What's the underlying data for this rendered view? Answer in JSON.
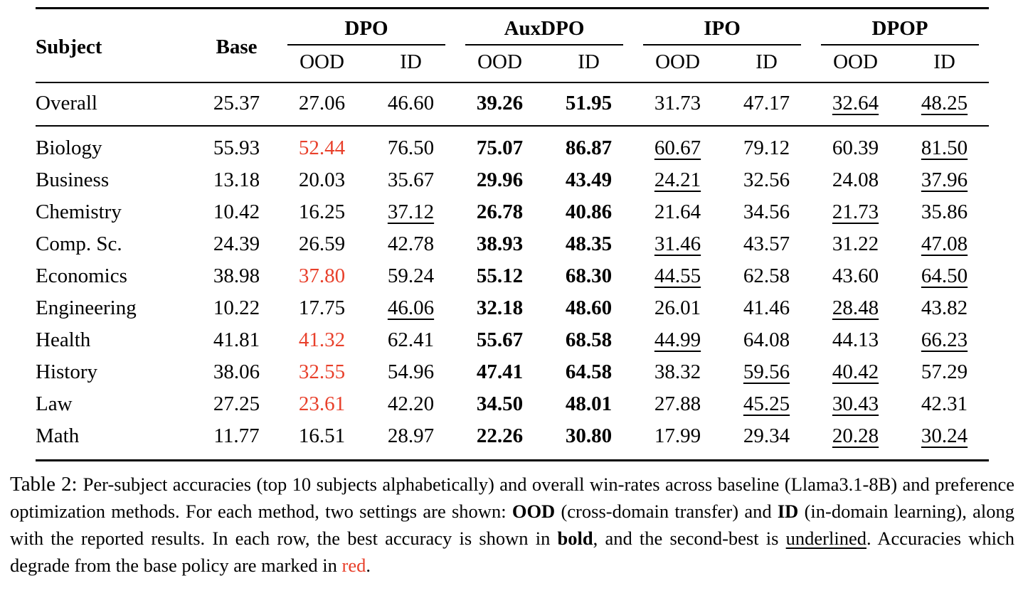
{
  "colors": {
    "accent_red": "#e8402b",
    "ink": "#000000"
  },
  "table": {
    "header": {
      "subject": "Subject",
      "base": "Base",
      "groups": [
        "DPO",
        "AuxDPO",
        "IPO",
        "DPOP"
      ],
      "subheaders": [
        "OOD",
        "ID"
      ]
    },
    "style_legend": {
      "": "plain",
      "b": "bold (best in row)",
      "u": "underlined (second-best)",
      "r": "red (degrades from base)"
    },
    "overall_row": {
      "subject": "Overall",
      "base": "25.37",
      "cells": [
        {
          "v": "27.06",
          "s": ""
        },
        {
          "v": "46.60",
          "s": ""
        },
        {
          "v": "39.26",
          "s": "b"
        },
        {
          "v": "51.95",
          "s": "b"
        },
        {
          "v": "31.73",
          "s": ""
        },
        {
          "v": "47.17",
          "s": ""
        },
        {
          "v": "32.64",
          "s": "u"
        },
        {
          "v": "48.25",
          "s": "u"
        }
      ]
    },
    "rows": [
      {
        "subject": "Biology",
        "base": "55.93",
        "cells": [
          {
            "v": "52.44",
            "s": "r"
          },
          {
            "v": "76.50",
            "s": ""
          },
          {
            "v": "75.07",
            "s": "b"
          },
          {
            "v": "86.87",
            "s": "b"
          },
          {
            "v": "60.67",
            "s": "u"
          },
          {
            "v": "79.12",
            "s": ""
          },
          {
            "v": "60.39",
            "s": ""
          },
          {
            "v": "81.50",
            "s": "u"
          }
        ]
      },
      {
        "subject": "Business",
        "base": "13.18",
        "cells": [
          {
            "v": "20.03",
            "s": ""
          },
          {
            "v": "35.67",
            "s": ""
          },
          {
            "v": "29.96",
            "s": "b"
          },
          {
            "v": "43.49",
            "s": "b"
          },
          {
            "v": "24.21",
            "s": "u"
          },
          {
            "v": "32.56",
            "s": ""
          },
          {
            "v": "24.08",
            "s": ""
          },
          {
            "v": "37.96",
            "s": "u"
          }
        ]
      },
      {
        "subject": "Chemistry",
        "base": "10.42",
        "cells": [
          {
            "v": "16.25",
            "s": ""
          },
          {
            "v": "37.12",
            "s": "u"
          },
          {
            "v": "26.78",
            "s": "b"
          },
          {
            "v": "40.86",
            "s": "b"
          },
          {
            "v": "21.64",
            "s": ""
          },
          {
            "v": "34.56",
            "s": ""
          },
          {
            "v": "21.73",
            "s": "u"
          },
          {
            "v": "35.86",
            "s": ""
          }
        ]
      },
      {
        "subject": "Comp. Sc.",
        "base": "24.39",
        "cells": [
          {
            "v": "26.59",
            "s": ""
          },
          {
            "v": "42.78",
            "s": ""
          },
          {
            "v": "38.93",
            "s": "b"
          },
          {
            "v": "48.35",
            "s": "b"
          },
          {
            "v": "31.46",
            "s": "u"
          },
          {
            "v": "43.57",
            "s": ""
          },
          {
            "v": "31.22",
            "s": ""
          },
          {
            "v": "47.08",
            "s": "u"
          }
        ]
      },
      {
        "subject": "Economics",
        "base": "38.98",
        "cells": [
          {
            "v": "37.80",
            "s": "r"
          },
          {
            "v": "59.24",
            "s": ""
          },
          {
            "v": "55.12",
            "s": "b"
          },
          {
            "v": "68.30",
            "s": "b"
          },
          {
            "v": "44.55",
            "s": "u"
          },
          {
            "v": "62.58",
            "s": ""
          },
          {
            "v": "43.60",
            "s": ""
          },
          {
            "v": "64.50",
            "s": "u"
          }
        ]
      },
      {
        "subject": "Engineering",
        "base": "10.22",
        "cells": [
          {
            "v": "17.75",
            "s": ""
          },
          {
            "v": "46.06",
            "s": "u"
          },
          {
            "v": "32.18",
            "s": "b"
          },
          {
            "v": "48.60",
            "s": "b"
          },
          {
            "v": "26.01",
            "s": ""
          },
          {
            "v": "41.46",
            "s": ""
          },
          {
            "v": "28.48",
            "s": "u"
          },
          {
            "v": "43.82",
            "s": ""
          }
        ]
      },
      {
        "subject": "Health",
        "base": "41.81",
        "cells": [
          {
            "v": "41.32",
            "s": "r"
          },
          {
            "v": "62.41",
            "s": ""
          },
          {
            "v": "55.67",
            "s": "b"
          },
          {
            "v": "68.58",
            "s": "b"
          },
          {
            "v": "44.99",
            "s": "u"
          },
          {
            "v": "64.08",
            "s": ""
          },
          {
            "v": "44.13",
            "s": ""
          },
          {
            "v": "66.23",
            "s": "u"
          }
        ]
      },
      {
        "subject": "History",
        "base": "38.06",
        "cells": [
          {
            "v": "32.55",
            "s": "r"
          },
          {
            "v": "54.96",
            "s": ""
          },
          {
            "v": "47.41",
            "s": "b"
          },
          {
            "v": "64.58",
            "s": "b"
          },
          {
            "v": "38.32",
            "s": ""
          },
          {
            "v": "59.56",
            "s": "u"
          },
          {
            "v": "40.42",
            "s": "u"
          },
          {
            "v": "57.29",
            "s": ""
          }
        ]
      },
      {
        "subject": "Law",
        "base": "27.25",
        "cells": [
          {
            "v": "23.61",
            "s": "r"
          },
          {
            "v": "42.20",
            "s": ""
          },
          {
            "v": "34.50",
            "s": "b"
          },
          {
            "v": "48.01",
            "s": "b"
          },
          {
            "v": "27.88",
            "s": ""
          },
          {
            "v": "45.25",
            "s": "u"
          },
          {
            "v": "30.43",
            "s": "u"
          },
          {
            "v": "42.31",
            "s": ""
          }
        ]
      },
      {
        "subject": "Math",
        "base": "11.77",
        "cells": [
          {
            "v": "16.51",
            "s": ""
          },
          {
            "v": "28.97",
            "s": ""
          },
          {
            "v": "22.26",
            "s": "b"
          },
          {
            "v": "30.80",
            "s": "b"
          },
          {
            "v": "17.99",
            "s": ""
          },
          {
            "v": "29.34",
            "s": ""
          },
          {
            "v": "20.28",
            "s": "u"
          },
          {
            "v": "30.24",
            "s": "u"
          }
        ]
      }
    ]
  },
  "caption": {
    "segments": [
      {
        "t": "Table 2: ",
        "cls": "cap-label"
      },
      {
        "t": "Per-subject accuracies (top 10 subjects alphabetically) and overall win-rates across baseline (Llama3.1-8B) and preference optimization methods. For each method, two settings are shown: ",
        "cls": ""
      },
      {
        "t": "OOD",
        "cls": "b"
      },
      {
        "t": " (cross-domain transfer) and ",
        "cls": ""
      },
      {
        "t": "ID",
        "cls": "b"
      },
      {
        "t": " (in-domain learning), along with the reported results. In each row, the best accuracy is shown in ",
        "cls": ""
      },
      {
        "t": "bold",
        "cls": "b"
      },
      {
        "t": ", and the second-best is ",
        "cls": ""
      },
      {
        "t": "underlined",
        "cls": "u"
      },
      {
        "t": ". Accuracies which degrade from the base policy are marked in ",
        "cls": ""
      },
      {
        "t": "red",
        "cls": "r"
      },
      {
        "t": ".",
        "cls": ""
      }
    ]
  }
}
